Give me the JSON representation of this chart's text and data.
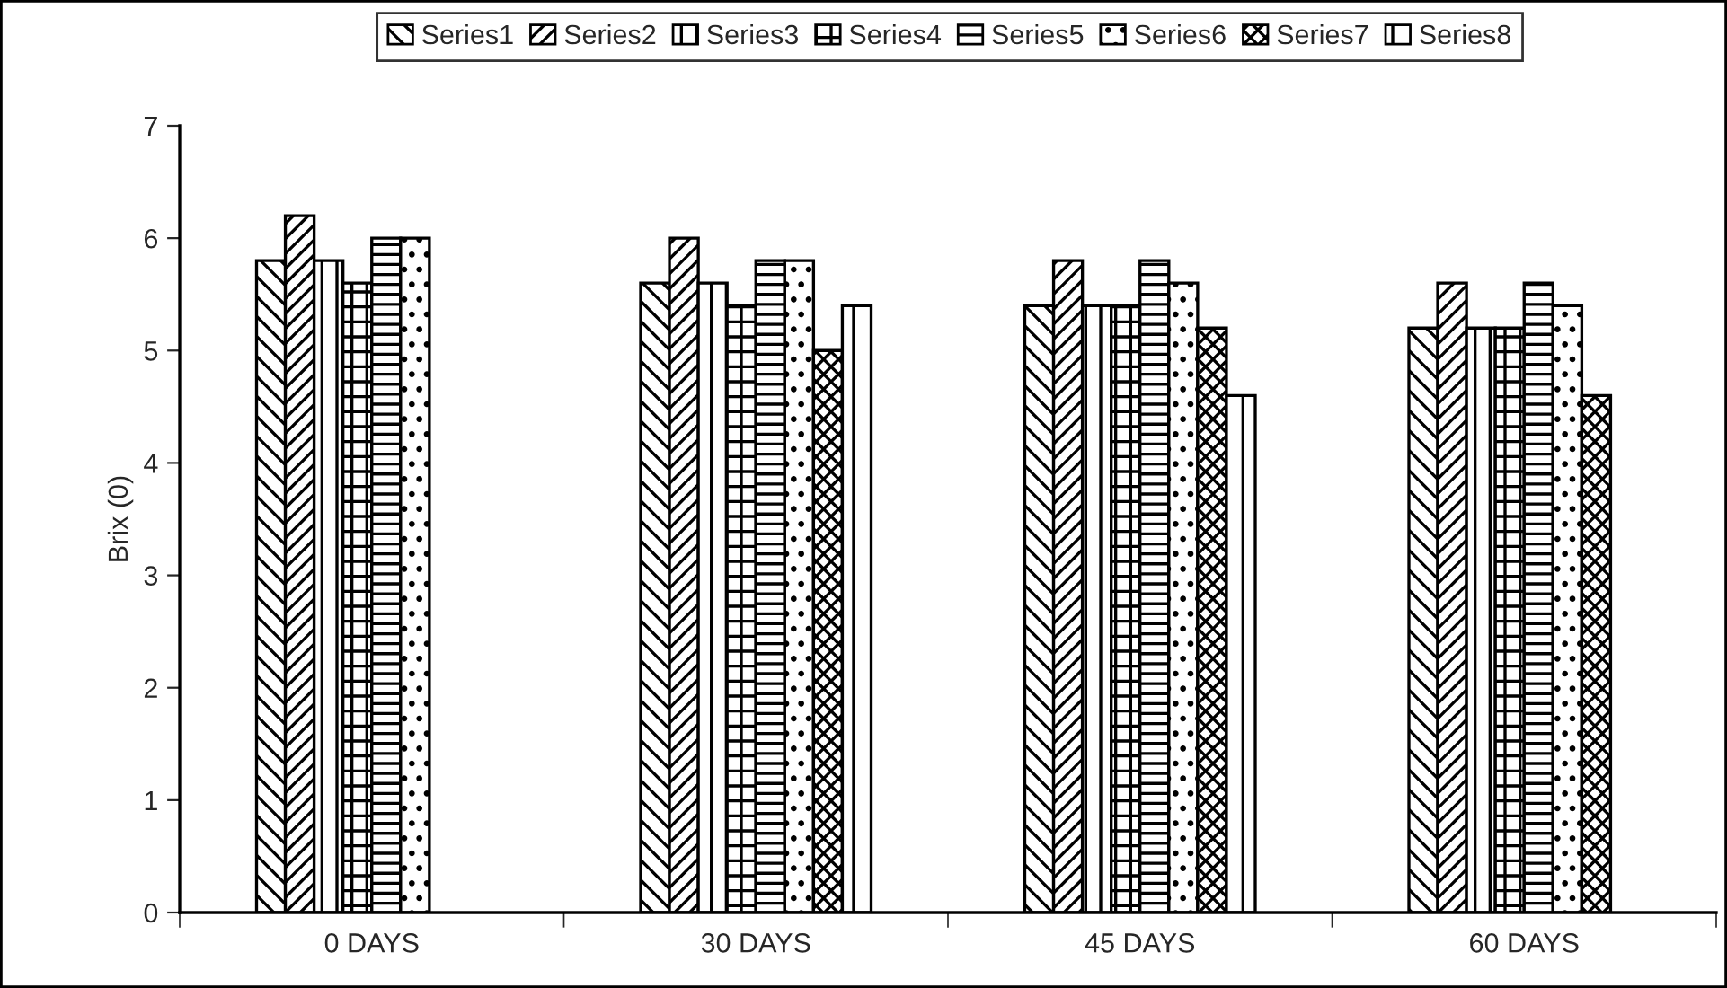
{
  "chart_data": {
    "type": "bar",
    "ylabel": "Brix (0)",
    "categories": [
      "0 DAYS",
      "30 DAYS",
      "45 DAYS",
      "60 DAYS"
    ],
    "series": [
      {
        "name": "Series1",
        "color": "#000000",
        "values": [
          5.8,
          5.6,
          5.4,
          5.2
        ]
      },
      {
        "name": "Series2",
        "color": "#000000",
        "values": [
          6.2,
          6.0,
          5.8,
          5.6
        ]
      },
      {
        "name": "Series3",
        "color": "#000000",
        "values": [
          5.8,
          5.6,
          5.4,
          5.2
        ]
      },
      {
        "name": "Series4",
        "color": "#000000",
        "values": [
          5.6,
          5.4,
          5.4,
          5.2
        ]
      },
      {
        "name": "Series5",
        "color": "#000000",
        "values": [
          6.0,
          5.8,
          5.8,
          5.6
        ]
      },
      {
        "name": "Series6",
        "color": "#000000",
        "values": [
          6.0,
          5.8,
          5.6,
          5.4
        ]
      },
      {
        "name": "Series7",
        "color": "#000000",
        "values": [
          null,
          5.0,
          5.2,
          4.6
        ]
      },
      {
        "name": "Series8",
        "color": "#000000",
        "values": [
          null,
          5.4,
          4.6,
          null
        ]
      }
    ],
    "ylim": [
      0,
      7
    ],
    "yticks": [
      0,
      1,
      2,
      3,
      4,
      5,
      6,
      7
    ],
    "grid": false,
    "legend": "top"
  }
}
